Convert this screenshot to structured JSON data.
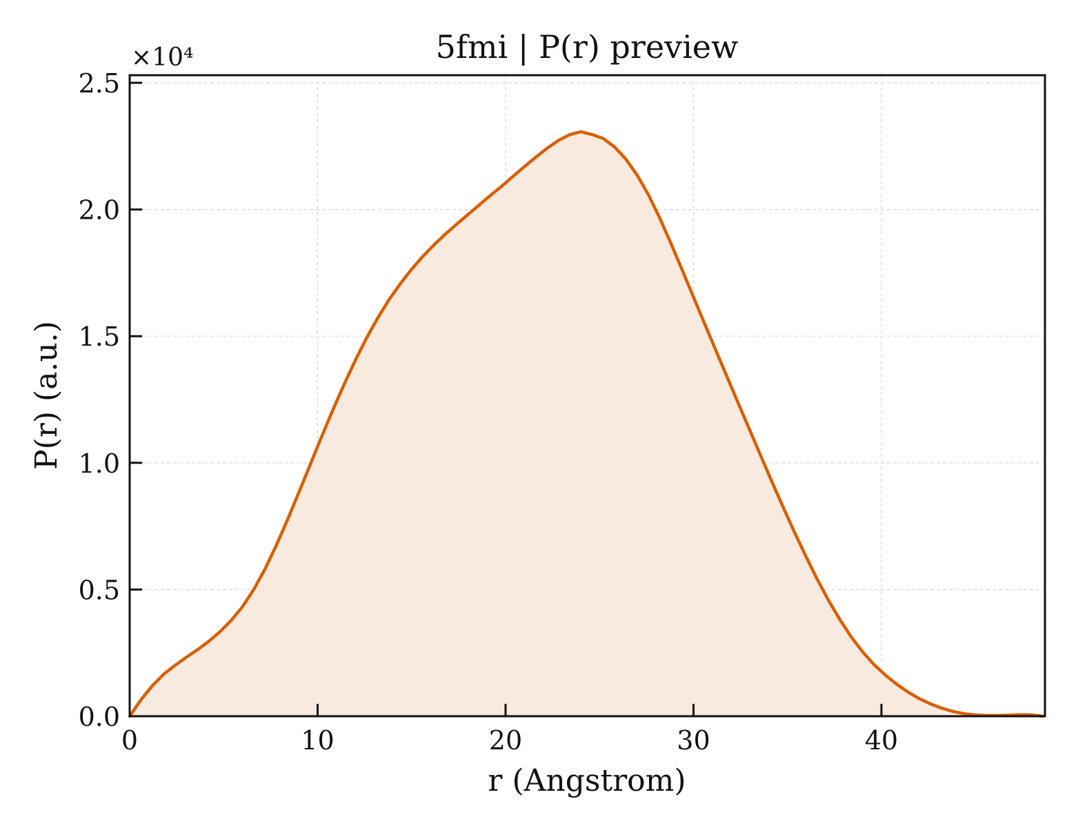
{
  "chart_data": {
    "type": "area",
    "title": "5fmi | P(r) preview",
    "xlabel": "r (Angstrom)",
    "ylabel": "P(r) (a.u.)",
    "y_scale_label": "×10⁴",
    "xlim": [
      0,
      48.7
    ],
    "ylim": [
      0,
      2.53
    ],
    "x_ticks": [
      0,
      10,
      20,
      30,
      40
    ],
    "x_tick_labels": [
      "0",
      "10",
      "20",
      "30",
      "40"
    ],
    "y_ticks": [
      0.0,
      0.5,
      1.0,
      1.5,
      2.0,
      2.5
    ],
    "y_tick_labels": [
      "0.0",
      "0.5",
      "1.0",
      "1.5",
      "2.0",
      "2.5"
    ],
    "grid": true,
    "series": [
      {
        "line_color": "#d95f02",
        "fill_color": "#f8eadf",
        "x": [
          0.0,
          0.6,
          1.2,
          1.8,
          2.4,
          3.0,
          3.6,
          4.2,
          4.8,
          5.4,
          6.0,
          6.6,
          7.2,
          7.8,
          8.4,
          9.0,
          9.6,
          10.2,
          10.8,
          11.4,
          12.0,
          12.6,
          13.2,
          13.8,
          14.4,
          15.0,
          15.6,
          16.2,
          16.8,
          17.4,
          18.0,
          18.6,
          19.2,
          19.8,
          20.4,
          21.0,
          21.6,
          22.2,
          22.8,
          23.4,
          24.0,
          24.6,
          25.2,
          25.8,
          26.4,
          27.0,
          27.6,
          28.2,
          28.8,
          29.4,
          30.0,
          30.6,
          31.2,
          31.8,
          32.4,
          33.0,
          33.6,
          34.2,
          34.8,
          35.4,
          36.0,
          36.6,
          37.2,
          37.8,
          38.4,
          39.0,
          39.6,
          40.2,
          40.8,
          41.4,
          42.0,
          42.6,
          43.2,
          43.8,
          44.4,
          45.0,
          45.6,
          46.2,
          46.8,
          47.4,
          48.0,
          48.6
        ],
        "y": [
          0.0,
          0.065,
          0.12,
          0.165,
          0.2,
          0.232,
          0.262,
          0.295,
          0.333,
          0.378,
          0.432,
          0.5,
          0.581,
          0.674,
          0.776,
          0.883,
          0.992,
          1.101,
          1.207,
          1.308,
          1.404,
          1.492,
          1.572,
          1.644,
          1.707,
          1.764,
          1.815,
          1.861,
          1.903,
          1.942,
          1.98,
          2.018,
          2.056,
          2.092,
          2.131,
          2.169,
          2.206,
          2.241,
          2.272,
          2.295,
          2.307,
          2.296,
          2.28,
          2.247,
          2.199,
          2.136,
          2.058,
          1.967,
          1.866,
          1.761,
          1.654,
          1.548,
          1.442,
          1.337,
          1.232,
          1.128,
          1.024,
          0.921,
          0.82,
          0.722,
          0.628,
          0.538,
          0.455,
          0.38,
          0.312,
          0.254,
          0.204,
          0.163,
          0.127,
          0.096,
          0.07,
          0.049,
          0.032,
          0.019,
          0.01,
          0.005,
          0.003,
          0.003,
          0.004,
          0.006,
          0.005,
          0.0
        ]
      }
    ]
  }
}
